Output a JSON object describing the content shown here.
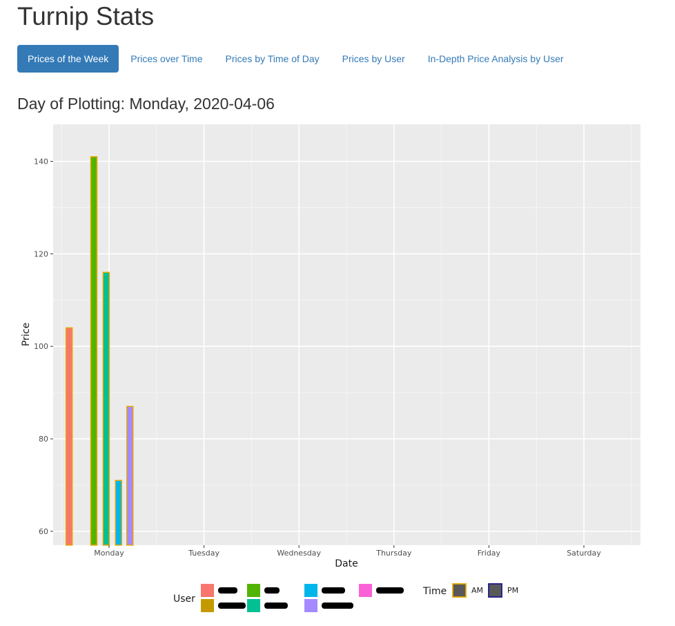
{
  "app": {
    "title": "Turnip Stats"
  },
  "nav": {
    "tabs": [
      {
        "label": "Prices of the Week",
        "active": true
      },
      {
        "label": "Prices over Time",
        "active": false
      },
      {
        "label": "Prices by Time of Day",
        "active": false
      },
      {
        "label": "Prices by User",
        "active": false
      },
      {
        "label": "In-Depth Price Analysis by User",
        "active": false
      }
    ]
  },
  "section": {
    "title": "Day of Plotting: Monday, 2020-04-06"
  },
  "chart_data": {
    "type": "bar",
    "xlabel": "Date",
    "ylabel": "Price",
    "categories": [
      "Monday",
      "Tuesday",
      "Wednesday",
      "Thursday",
      "Friday",
      "Saturday"
    ],
    "yticks": [
      60,
      80,
      100,
      120,
      140
    ],
    "ylim": [
      57,
      148
    ],
    "grid": true,
    "legend_position": "bottom",
    "bars": [
      {
        "day": "Monday",
        "offset": -0.42,
        "value": 104,
        "fill": "#f8766d",
        "outline": "#e6a800"
      },
      {
        "day": "Monday",
        "offset": -0.16,
        "value": 141,
        "fill": "#53b400",
        "outline": "#e6a800"
      },
      {
        "day": "Monday",
        "offset": -0.03,
        "value": 116,
        "fill": "#00c094",
        "outline": "#e6a800"
      },
      {
        "day": "Monday",
        "offset": 0.1,
        "value": 71,
        "fill": "#00b6eb",
        "outline": "#e6a800"
      },
      {
        "day": "Monday",
        "offset": 0.22,
        "value": 87,
        "fill": "#a58aff",
        "outline": "#e6a800"
      }
    ],
    "legend": {
      "user_title": "User",
      "user_colors": [
        "#f8766d",
        "#c49a00",
        "#53b400",
        "#00c094",
        "#00b6eb",
        "#a58aff",
        "#fb61d7"
      ],
      "time_title": "Time",
      "time_entries": [
        {
          "label": "AM",
          "fill": "#595959",
          "outline": "#e6a800"
        },
        {
          "label": "PM",
          "fill": "#595959",
          "outline": "#1a1a8c"
        }
      ]
    }
  }
}
